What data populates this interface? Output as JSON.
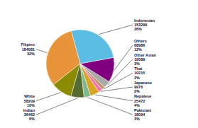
{
  "chart_data": {
    "type": "pie",
    "categories": [
      "Filipino\n184081\n32%",
      "White\n58209\n10%",
      "Indian\n36462\n6%",
      "Pakistani\n18094\n3%",
      "Nepalese\n25472\n4%",
      "Japanese\n9976\n2%",
      "Thai\n10215\n2%",
      "Other Asian\n19589\n3%",
      "Others\n68986\n12%",
      "Indonesian\n153299\n26%"
    ],
    "values": [
      184081,
      58209,
      36462,
      18094,
      25472,
      9976,
      10215,
      19589,
      68986,
      153299
    ],
    "colors": [
      "#E8943A",
      "#8B8B00",
      "#556B2F",
      "#7CB98F",
      "#DAA520",
      "#FF69B4",
      "#C4956A",
      "#A9A9A9",
      "#800080",
      "#5BBCE4"
    ]
  }
}
